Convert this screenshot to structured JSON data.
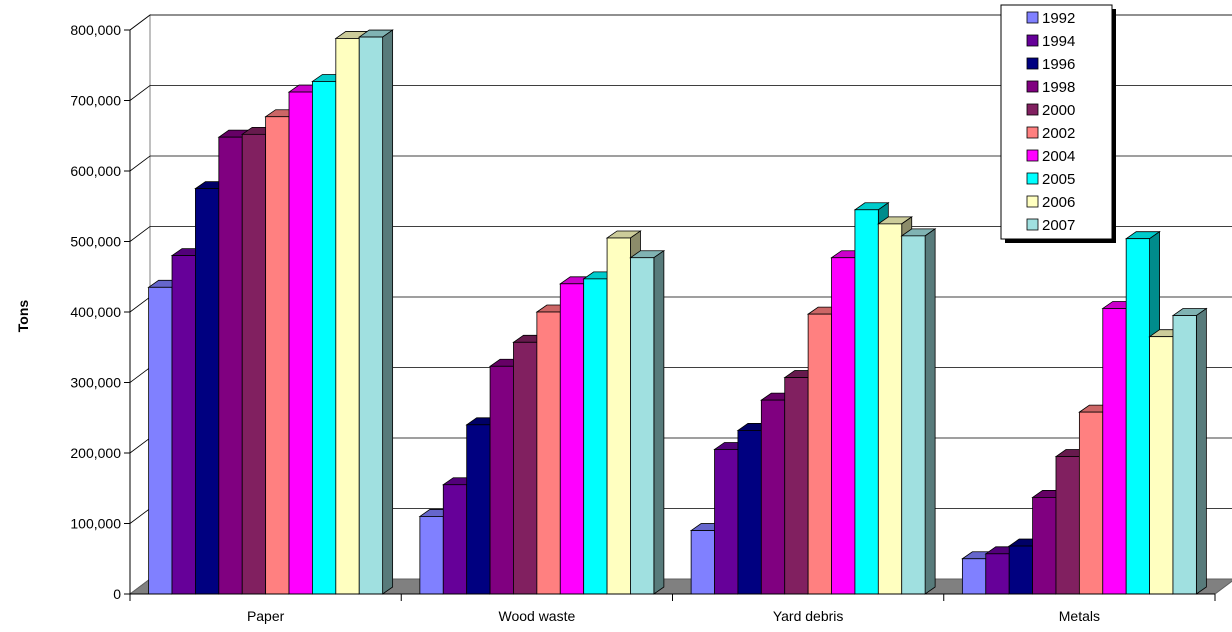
{
  "chart_data": {
    "type": "bar",
    "title": "",
    "xlabel": "",
    "ylabel": "Tons",
    "ylim": [
      0,
      800000
    ],
    "yticks": [
      "0",
      "100,000",
      "200,000",
      "300,000",
      "400,000",
      "500,000",
      "600,000",
      "700,000",
      "800,000"
    ],
    "categories": [
      "Paper",
      "Wood waste",
      "Yard debris",
      "Metals"
    ],
    "grid": true,
    "legend_position": "top-right",
    "series": [
      {
        "name": "1992",
        "color": "#8080FF",
        "values": [
          435000,
          110000,
          90000,
          50000
        ]
      },
      {
        "name": "1994",
        "color": "#660099",
        "values": [
          480000,
          155000,
          205000,
          57000
        ]
      },
      {
        "name": "1996",
        "color": "#000080",
        "values": [
          575000,
          240000,
          232000,
          68000
        ]
      },
      {
        "name": "1998",
        "color": "#800080",
        "values": [
          648000,
          323000,
          275000,
          137000
        ]
      },
      {
        "name": "2000",
        "color": "#812060",
        "values": [
          652000,
          357000,
          307000,
          195000
        ]
      },
      {
        "name": "2002",
        "color": "#FF8080",
        "values": [
          677000,
          400000,
          397000,
          258000
        ]
      },
      {
        "name": "2004",
        "color": "#FF00FF",
        "values": [
          712000,
          440000,
          477000,
          405000
        ]
      },
      {
        "name": "2005",
        "color": "#00FFFF",
        "values": [
          727000,
          447000,
          545000,
          504000
        ]
      },
      {
        "name": "2006",
        "color": "#FFFFC0",
        "values": [
          788000,
          505000,
          525000,
          365000
        ]
      },
      {
        "name": "2007",
        "color": "#A0E0E0",
        "values": [
          790000,
          477000,
          508000,
          395000
        ]
      }
    ]
  }
}
